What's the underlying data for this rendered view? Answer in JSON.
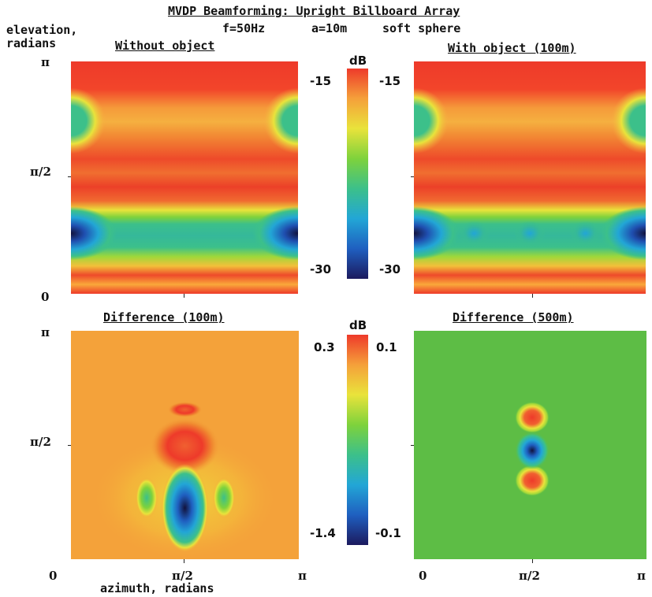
{
  "chart_data": {
    "type": "heatmap",
    "title": "MVDP Beamforming: Upright Billboard Array",
    "subtitle": {
      "frequency": "f=50Hz",
      "radius": "a=10m",
      "object": "soft sphere"
    },
    "ylabel": "elevation, radians",
    "xlabel": "azimuth, radians",
    "x_ticks": [
      "0",
      "π/2",
      "π"
    ],
    "y_ticks": [
      "0",
      "π/2",
      "π"
    ],
    "xlim": [
      0,
      3.1416
    ],
    "ylim": [
      0,
      3.1416
    ],
    "colorscale": [
      "#1c1a5e",
      "#1f5fc0",
      "#22a6d6",
      "#3cc08a",
      "#7ed23c",
      "#e9e33b",
      "#f5a03a",
      "#ee3a2a"
    ],
    "panels": [
      {
        "id": "without",
        "title": "Without object",
        "unit": "dB",
        "range": [
          -30,
          -15
        ],
        "colorbar": {
          "max_label": "-15",
          "min_label": "-30",
          "unit_label": "dB"
        }
      },
      {
        "id": "with",
        "title": "With object (100m)",
        "range": [
          -30,
          -15
        ],
        "colorbar": {
          "max_label": "-15",
          "min_label": "-30"
        }
      },
      {
        "id": "diff100",
        "title": "Difference (100m)",
        "unit": "dB",
        "range": [
          -1.4,
          0.3
        ],
        "colorbar": {
          "max_label": "0.3",
          "min_label": "-1.4",
          "unit_label": "dB"
        }
      },
      {
        "id": "diff500",
        "title": "Difference (500m)",
        "range": [
          -0.1,
          0.1
        ],
        "colorbar": {
          "max_label": "0.1",
          "min_label": "-0.1"
        }
      }
    ]
  }
}
